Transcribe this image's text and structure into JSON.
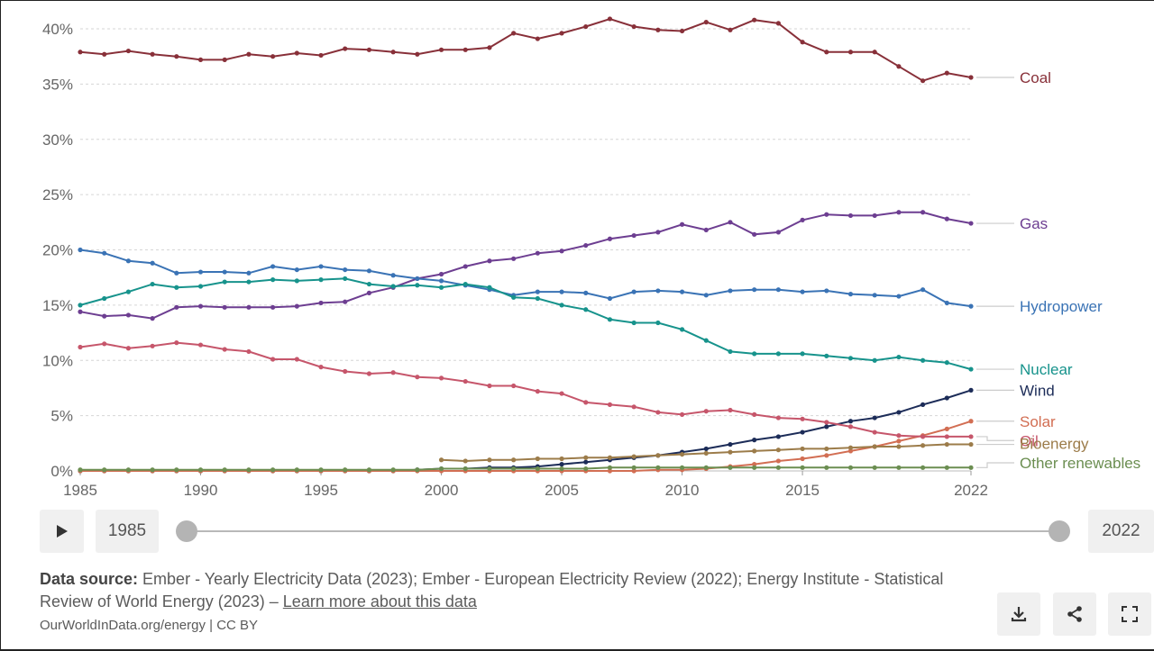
{
  "chart_data": {
    "type": "line",
    "title": "",
    "xlabel": "",
    "ylabel": "",
    "xlim": [
      1985,
      2022
    ],
    "ylim": [
      0,
      40
    ],
    "y_ticks": [
      0,
      5,
      10,
      15,
      20,
      25,
      30,
      35,
      40
    ],
    "y_tick_labels": [
      "0%",
      "5%",
      "10%",
      "15%",
      "20%",
      "25%",
      "30%",
      "35%",
      "40%"
    ],
    "x_ticks": [
      1985,
      1990,
      1995,
      2000,
      2005,
      2010,
      2015,
      2022
    ],
    "x_tick_labels": [
      "1985",
      "1990",
      "1995",
      "2000",
      "2005",
      "2010",
      "2015",
      "2022"
    ],
    "grid": "horizontal dotted",
    "legend": "inline labels at right end of each line",
    "series": [
      {
        "name": "Coal",
        "color": "#883039",
        "start": 1985,
        "values": [
          37.9,
          37.7,
          38.0,
          37.7,
          37.5,
          37.2,
          37.2,
          37.7,
          37.5,
          37.8,
          37.6,
          38.2,
          38.1,
          37.9,
          37.7,
          38.1,
          38.1,
          38.3,
          39.6,
          39.1,
          39.6,
          40.2,
          40.9,
          40.2,
          39.9,
          39.8,
          40.6,
          39.9,
          40.8,
          40.5,
          38.8,
          37.9,
          37.9,
          37.9,
          36.6,
          35.3,
          36.0,
          35.6
        ]
      },
      {
        "name": "Gas",
        "color": "#6d3e91",
        "start": 1985,
        "values": [
          14.4,
          14.0,
          14.1,
          13.8,
          14.8,
          14.9,
          14.8,
          14.8,
          14.8,
          14.9,
          15.2,
          15.3,
          16.1,
          16.6,
          17.4,
          17.8,
          18.5,
          19.0,
          19.2,
          19.7,
          19.9,
          20.4,
          21.0,
          21.3,
          21.6,
          22.3,
          21.8,
          22.5,
          21.4,
          21.6,
          22.7,
          23.2,
          23.1,
          23.1,
          23.4,
          23.4,
          22.8,
          22.4
        ]
      },
      {
        "name": "Hydropower",
        "color": "#3a73b5",
        "start": 1985,
        "values": [
          20.0,
          19.7,
          19.0,
          18.8,
          17.9,
          18.0,
          18.0,
          17.9,
          18.5,
          18.2,
          18.5,
          18.2,
          18.1,
          17.7,
          17.4,
          17.2,
          16.8,
          16.4,
          15.9,
          16.2,
          16.2,
          16.1,
          15.6,
          16.2,
          16.3,
          16.2,
          15.9,
          16.3,
          16.4,
          16.4,
          16.2,
          16.3,
          16.0,
          15.9,
          15.8,
          16.4,
          15.2,
          14.9
        ]
      },
      {
        "name": "Nuclear",
        "color": "#17938c",
        "start": 1985,
        "values": [
          15.0,
          15.6,
          16.2,
          16.9,
          16.6,
          16.7,
          17.1,
          17.1,
          17.3,
          17.2,
          17.3,
          17.4,
          16.9,
          16.7,
          16.8,
          16.6,
          16.9,
          16.6,
          15.7,
          15.6,
          15.0,
          14.6,
          13.7,
          13.4,
          13.4,
          12.8,
          11.8,
          10.8,
          10.6,
          10.6,
          10.6,
          10.4,
          10.2,
          10.0,
          10.3,
          10.0,
          9.8,
          9.2
        ]
      },
      {
        "name": "Wind",
        "color": "#1c2c58",
        "start": 1985,
        "values": [
          0,
          0,
          0,
          0,
          0,
          0,
          0,
          0,
          0,
          0,
          0,
          0,
          0,
          0,
          0.1,
          0.2,
          0.2,
          0.3,
          0.3,
          0.4,
          0.6,
          0.8,
          1.0,
          1.2,
          1.4,
          1.7,
          2.0,
          2.4,
          2.8,
          3.1,
          3.5,
          4.0,
          4.5,
          4.8,
          5.3,
          6.0,
          6.6,
          7.3
        ]
      },
      {
        "name": "Solar",
        "color": "#d26e53",
        "start": 1985,
        "values": [
          0,
          0,
          0,
          0,
          0,
          0,
          0,
          0,
          0,
          0,
          0,
          0,
          0,
          0,
          0,
          0,
          0,
          0,
          0,
          0,
          0,
          0,
          0,
          0,
          0.1,
          0.1,
          0.2,
          0.4,
          0.6,
          0.9,
          1.1,
          1.4,
          1.8,
          2.2,
          2.7,
          3.2,
          3.8,
          4.5
        ]
      },
      {
        "name": "Oil",
        "color": "#c6566b",
        "start": 1985,
        "values": [
          11.2,
          11.5,
          11.1,
          11.3,
          11.6,
          11.4,
          11.0,
          10.8,
          10.1,
          10.1,
          9.4,
          9.0,
          8.8,
          8.9,
          8.5,
          8.4,
          8.1,
          7.7,
          7.7,
          7.2,
          7.0,
          6.2,
          6.0,
          5.8,
          5.3,
          5.1,
          5.4,
          5.5,
          5.1,
          4.8,
          4.7,
          4.4,
          4.0,
          3.5,
          3.2,
          3.1,
          3.1,
          3.1
        ]
      },
      {
        "name": "Bioenergy",
        "color": "#9c7c4a",
        "start": 2000,
        "values": [
          1.0,
          0.9,
          1.0,
          1.0,
          1.1,
          1.1,
          1.2,
          1.2,
          1.3,
          1.4,
          1.5,
          1.6,
          1.7,
          1.8,
          1.9,
          2.0,
          2.0,
          2.1,
          2.2,
          2.2,
          2.3,
          2.4,
          2.4
        ]
      },
      {
        "name": "Other renewables",
        "color": "#6b8e51",
        "start": 1985,
        "values": [
          0.1,
          0.1,
          0.1,
          0.1,
          0.1,
          0.1,
          0.1,
          0.1,
          0.1,
          0.1,
          0.1,
          0.1,
          0.1,
          0.1,
          0.1,
          0.2,
          0.2,
          0.2,
          0.2,
          0.2,
          0.2,
          0.2,
          0.3,
          0.3,
          0.3,
          0.3,
          0.3,
          0.3,
          0.3,
          0.3,
          0.3,
          0.3,
          0.3,
          0.3,
          0.3,
          0.3,
          0.3,
          0.3
        ]
      }
    ]
  },
  "controls": {
    "start_year": "1985",
    "end_year": "2022",
    "play_icon": "play-icon"
  },
  "footer": {
    "source_label": "Data source:",
    "source_text": " Ember - Yearly Electricity Data (2023); Ember - European Electricity Review (2022); Energy Institute - Statistical Review of World Energy (2023) – ",
    "learn_more": "Learn more about this data",
    "license": "OurWorldInData.org/energy | CC BY"
  },
  "actions": {
    "download_icon": "download-icon",
    "share_icon": "share-icon",
    "fullscreen_icon": "fullscreen-icon"
  }
}
